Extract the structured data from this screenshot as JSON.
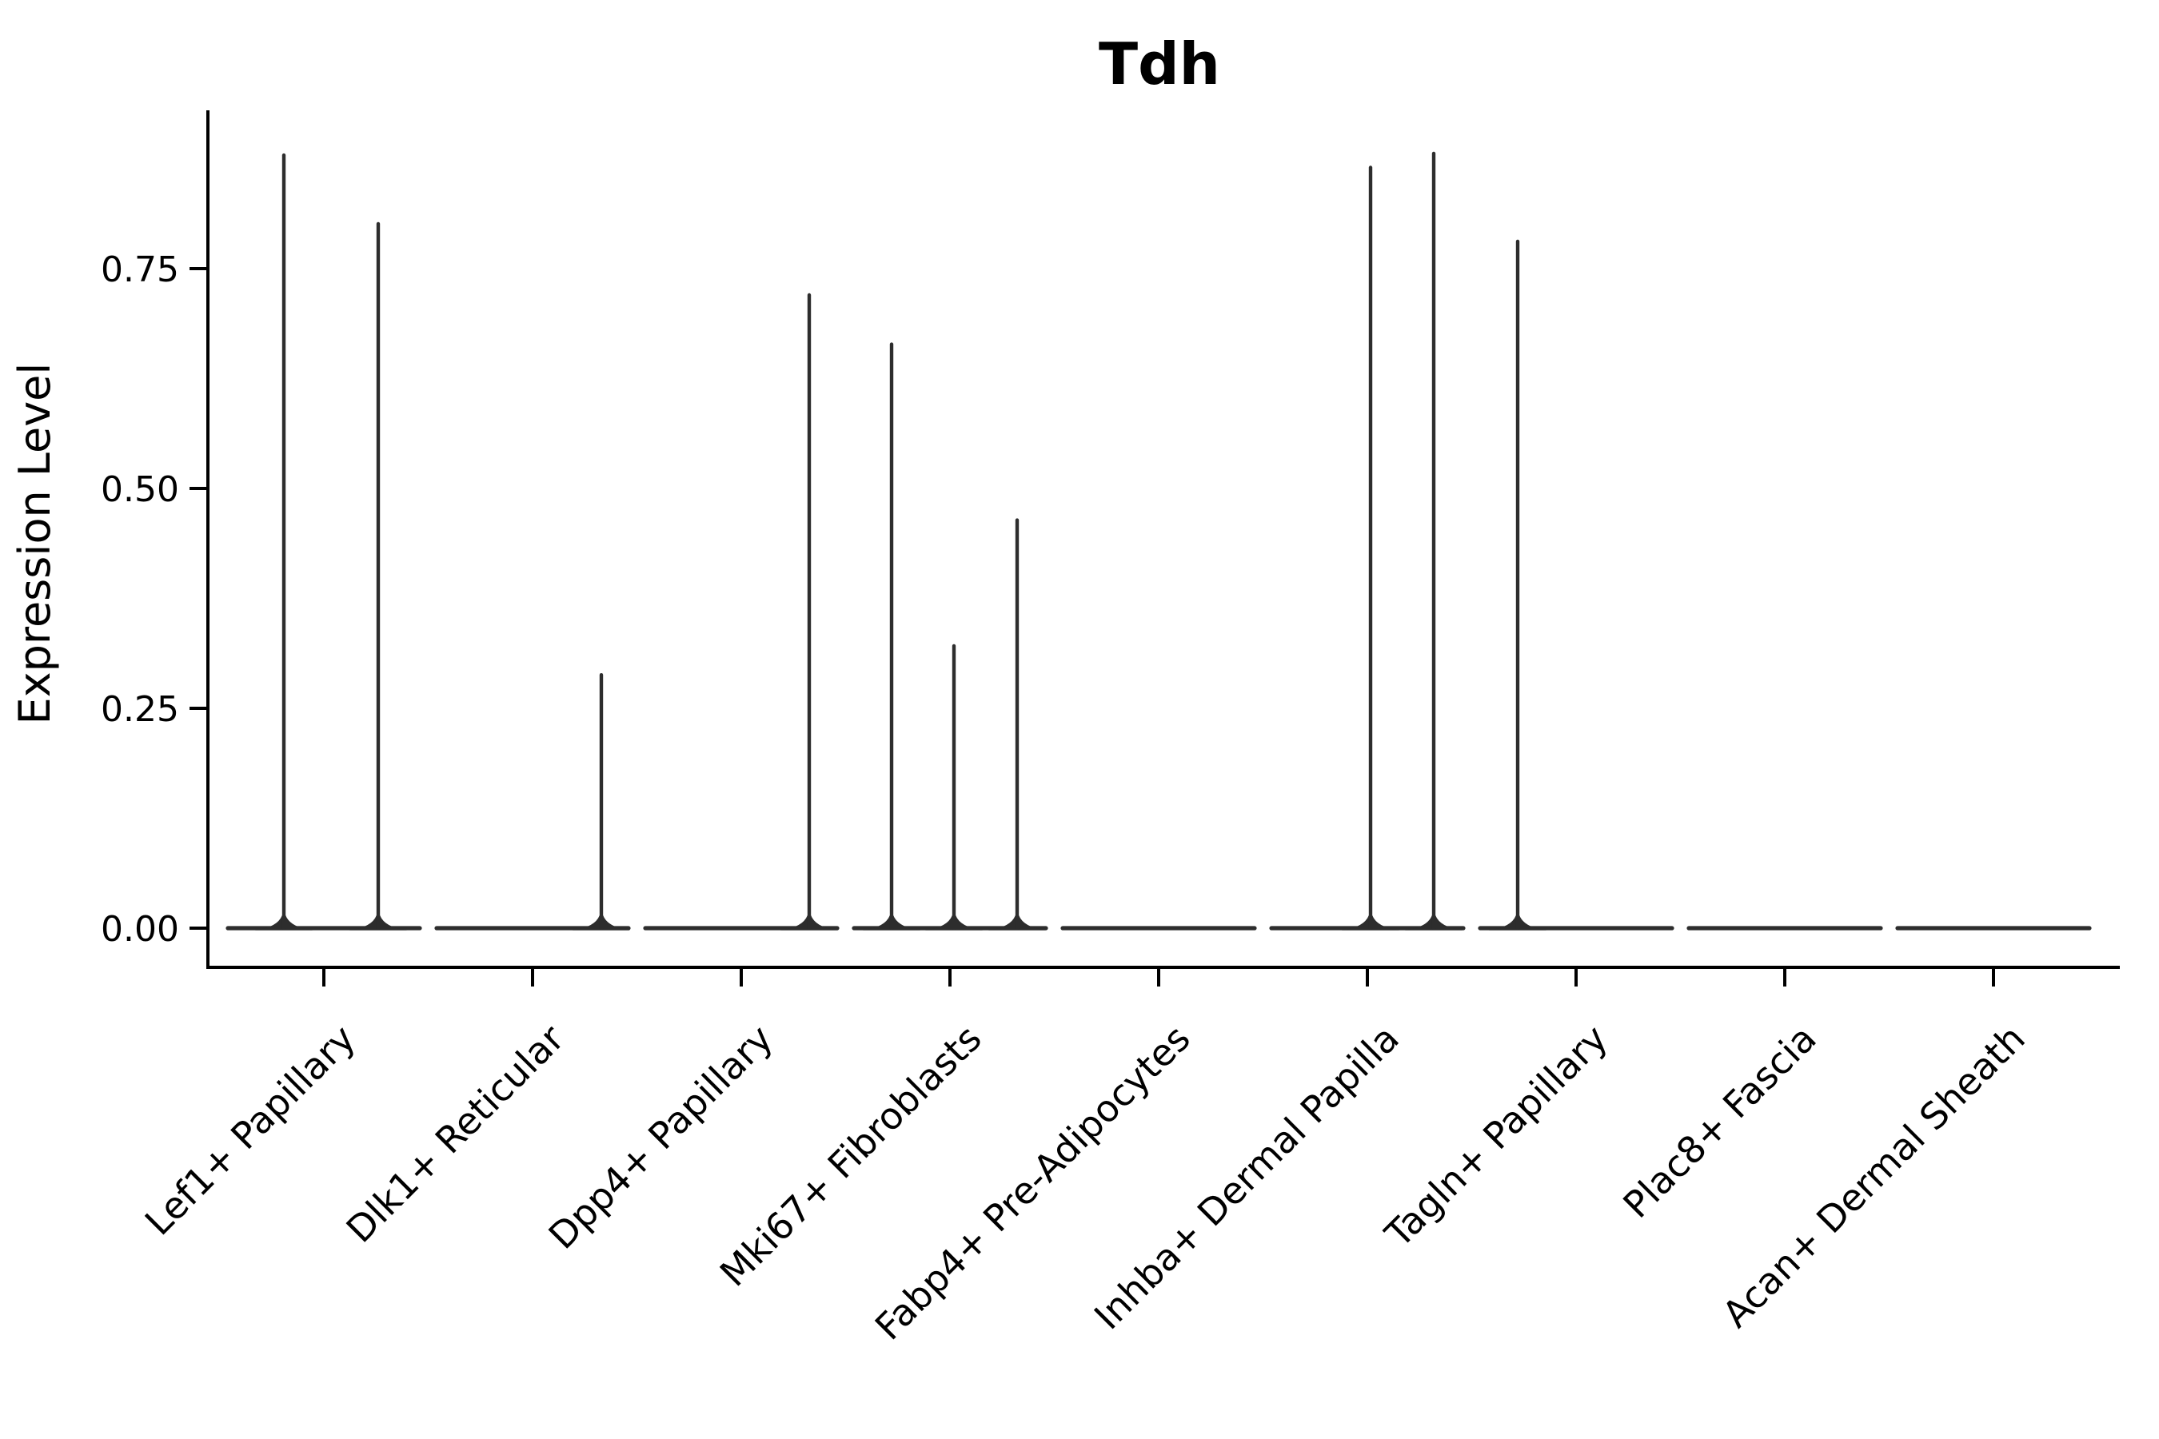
{
  "chart_data": {
    "type": "violin",
    "title": "Tdh",
    "ylabel": "Expression Level",
    "xlabel": "",
    "grid": false,
    "legend": null,
    "ylim": [
      -0.045,
      0.928
    ],
    "yticks": [
      {
        "value": 0.0,
        "label": "0.00"
      },
      {
        "value": 0.25,
        "label": "0.25"
      },
      {
        "value": 0.5,
        "label": "0.50"
      },
      {
        "value": 0.75,
        "label": "0.75"
      }
    ],
    "violin_color": "#2d2d2d",
    "axis_color": "#000000",
    "baseline_value": 0,
    "baseline_halfwidth": 120,
    "categories": [
      {
        "label": "Lef1+ Papillary",
        "spikes": [
          {
            "offset": -50,
            "max": 0.881
          },
          {
            "offset": 68,
            "max": 0.803
          }
        ]
      },
      {
        "label": "Dlk1+ Reticular",
        "spikes": [
          {
            "offset": 86,
            "max": 0.29
          }
        ]
      },
      {
        "label": "Dpp4+ Papillary",
        "spikes": [
          {
            "offset": 85,
            "max": 0.722
          }
        ]
      },
      {
        "label": "Mki67+ Fibroblasts",
        "spikes": [
          {
            "offset": -73,
            "max": 0.666
          },
          {
            "offset": 5,
            "max": 0.323
          },
          {
            "offset": 84,
            "max": 0.466
          }
        ]
      },
      {
        "label": "Fabp4+ Pre-Adipocytes",
        "spikes": []
      },
      {
        "label": "Inhba+ Dermal Papilla",
        "spikes": [
          {
            "offset": 4,
            "max": 0.867
          },
          {
            "offset": 83,
            "max": 0.883
          }
        ]
      },
      {
        "label": "Tagln+ Papillary",
        "spikes": [
          {
            "offset": -73,
            "max": 0.783
          }
        ]
      },
      {
        "label": "Plac8+ Fascia",
        "spikes": []
      },
      {
        "label": "Acan+ Dermal Sheath",
        "spikes": []
      }
    ]
  }
}
